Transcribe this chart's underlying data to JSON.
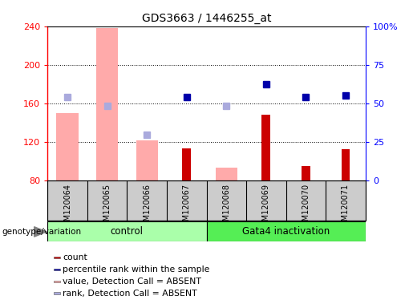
{
  "title": "GDS3663 / 1446255_at",
  "samples": [
    "GSM120064",
    "GSM120065",
    "GSM120066",
    "GSM120067",
    "GSM120068",
    "GSM120069",
    "GSM120070",
    "GSM120071"
  ],
  "ylim_left": [
    80,
    240
  ],
  "ylim_right": [
    0,
    100
  ],
  "yticks_left": [
    80,
    120,
    160,
    200,
    240
  ],
  "yticks_right": [
    0,
    25,
    50,
    75,
    100
  ],
  "ytick_labels_right": [
    "0",
    "25",
    "50",
    "75",
    "100%"
  ],
  "count_bars": {
    "GSM120067": 113,
    "GSM120069": 148,
    "GSM120070": 95,
    "GSM120071": 112
  },
  "absent_value_bars": {
    "GSM120064": 150,
    "GSM120065": 238,
    "GSM120066": 121,
    "GSM120068": 93
  },
  "percentile_rank_dots_left": {
    "GSM120067": 166,
    "GSM120069": 180,
    "GSM120070": 166,
    "GSM120071": 168
  },
  "absent_rank_dots_left": {
    "GSM120064": 166,
    "GSM120065": 157,
    "GSM120066": 127,
    "GSM120068": 157
  },
  "colors": {
    "count_bar": "#cc0000",
    "absent_value_bar": "#ffaaaa",
    "percentile_rank_dot": "#0000aa",
    "absent_rank_dot": "#aaaadd",
    "control_bg": "#aaffaa",
    "gata4_bg": "#55ee55",
    "sample_bg": "#cccccc",
    "plot_bg": "#ffffff"
  },
  "legend_items": [
    {
      "label": "count",
      "color": "#cc0000"
    },
    {
      "label": "percentile rank within the sample",
      "color": "#0000aa"
    },
    {
      "label": "value, Detection Call = ABSENT",
      "color": "#ffaaaa"
    },
    {
      "label": "rank, Detection Call = ABSENT",
      "color": "#aaaadd"
    }
  ],
  "control_samples": [
    0,
    1,
    2,
    3
  ],
  "gata4_samples": [
    4,
    5,
    6,
    7
  ]
}
